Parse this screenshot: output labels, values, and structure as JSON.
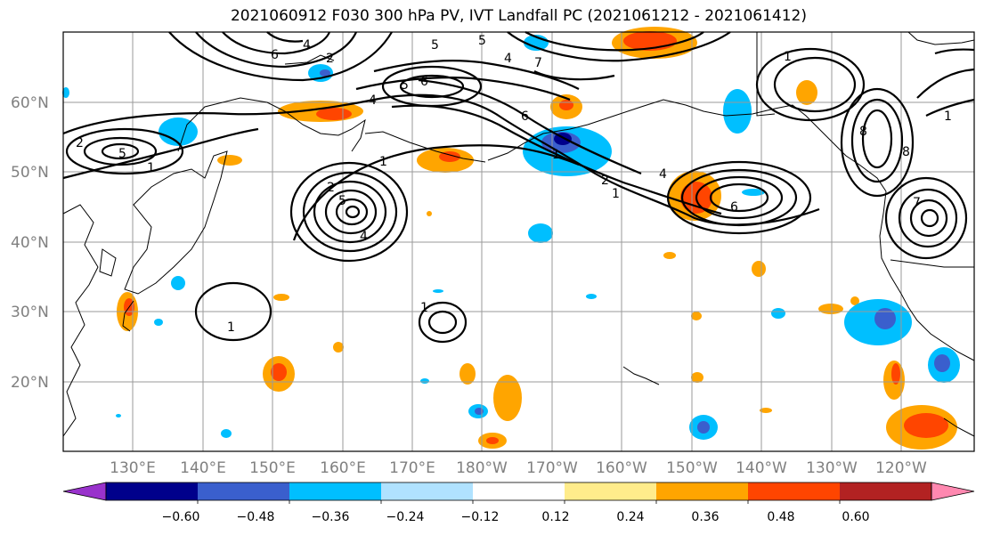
{
  "title": "2021060912 F030 300 hPa PV, IVT Landfall PC (2021061212 - 2021061412)",
  "lat_labels": [
    "60°N",
    "50°N",
    "40°N",
    "30°N",
    "20°N"
  ],
  "lon_labels": [
    "130°E",
    "140°E",
    "150°E",
    "160°E",
    "170°E",
    "180°W",
    "170°W",
    "160°W",
    "150°W",
    "140°W",
    "130°W",
    "120°W"
  ],
  "colorbar": {
    "ticks": [
      "−0.60",
      "−0.48",
      "−0.36",
      "−0.24",
      "−0.12",
      "0.12",
      "0.24",
      "0.36",
      "0.48",
      "0.60"
    ],
    "colors": [
      "#9932cc",
      "#00008b",
      "#3a5fcd",
      "#00bfff",
      "#b0e2ff",
      "#ffffff",
      "#ffec8b",
      "#ffa500",
      "#ff4500",
      "#b22222",
      "#ff88b0"
    ]
  },
  "contour_labels": [
    "4",
    "6",
    "5",
    "2",
    "4",
    "5",
    "7",
    "4",
    "5",
    "6",
    "1",
    "1",
    "6",
    "8",
    "1",
    "2",
    "5",
    "1",
    "5",
    "4",
    "1",
    "4",
    "2",
    "2",
    "6",
    "7",
    "1",
    "8",
    "1",
    "1"
  ]
}
